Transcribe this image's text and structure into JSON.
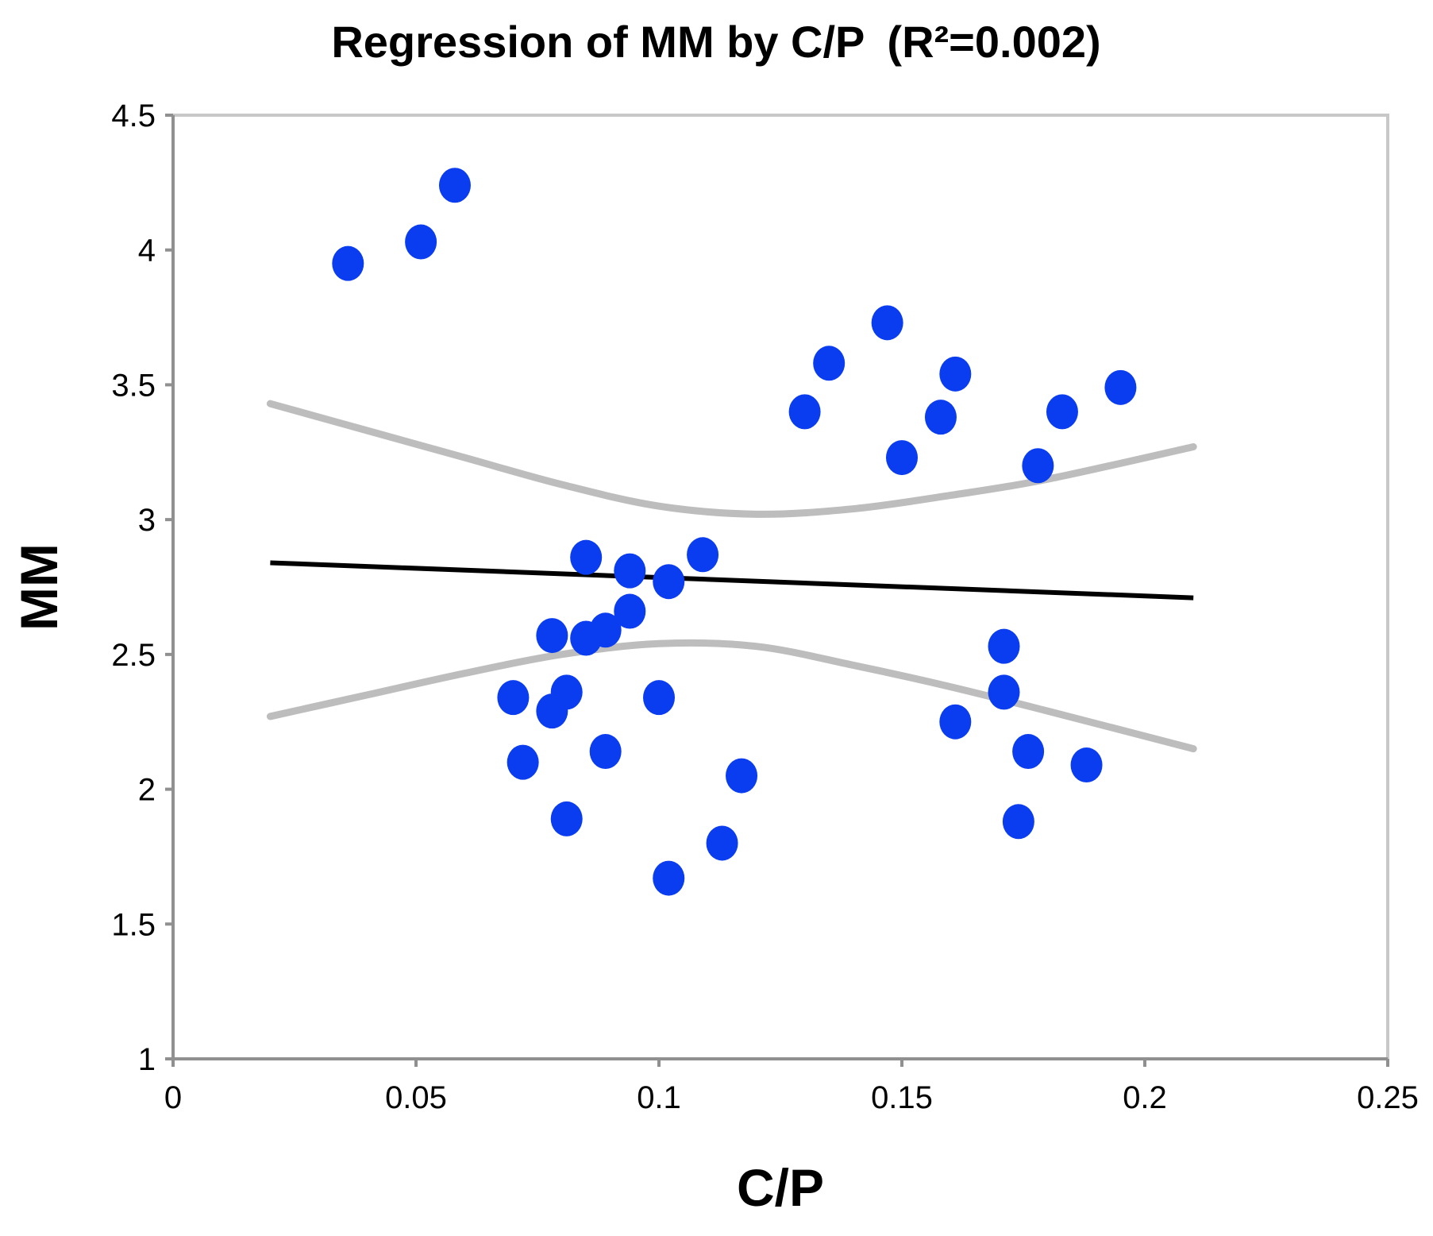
{
  "chart_data": {
    "type": "scatter",
    "title": "Regression of MM by C/P",
    "title_stat": "(R²=0.002)",
    "xlabel": "C/P",
    "ylabel": "MM",
    "xlim": [
      0,
      0.25
    ],
    "ylim": [
      1,
      4.5
    ],
    "x_ticks": [
      0,
      0.05,
      0.1,
      0.15,
      0.2,
      0.25
    ],
    "x_tick_labels": [
      "0",
      "0.05",
      "0.1",
      "0.15",
      "0.2",
      "0.25"
    ],
    "y_ticks": [
      1,
      1.5,
      2,
      2.5,
      3,
      3.5,
      4,
      4.5
    ],
    "y_tick_labels": [
      "1",
      "1.5",
      "2",
      "2.5",
      "3",
      "3.5",
      "4",
      "4.5"
    ],
    "grid": false,
    "colors": {
      "points": "#0a3cf0",
      "regression_line": "#000000",
      "confidence_band": "#bdbdbd",
      "frame": "#c8c8c8",
      "axis": "#909090"
    },
    "points": [
      {
        "x": 0.036,
        "y": 3.95
      },
      {
        "x": 0.051,
        "y": 4.03
      },
      {
        "x": 0.058,
        "y": 4.24
      },
      {
        "x": 0.07,
        "y": 2.34
      },
      {
        "x": 0.072,
        "y": 2.1
      },
      {
        "x": 0.078,
        "y": 2.57
      },
      {
        "x": 0.078,
        "y": 2.29
      },
      {
        "x": 0.081,
        "y": 2.36
      },
      {
        "x": 0.081,
        "y": 1.89
      },
      {
        "x": 0.085,
        "y": 2.86
      },
      {
        "x": 0.085,
        "y": 2.56
      },
      {
        "x": 0.089,
        "y": 2.59
      },
      {
        "x": 0.089,
        "y": 2.14
      },
      {
        "x": 0.094,
        "y": 2.81
      },
      {
        "x": 0.094,
        "y": 2.66
      },
      {
        "x": 0.1,
        "y": 2.34
      },
      {
        "x": 0.102,
        "y": 2.77
      },
      {
        "x": 0.102,
        "y": 1.67
      },
      {
        "x": 0.109,
        "y": 2.87
      },
      {
        "x": 0.113,
        "y": 1.8
      },
      {
        "x": 0.117,
        "y": 2.05
      },
      {
        "x": 0.13,
        "y": 3.4
      },
      {
        "x": 0.135,
        "y": 3.58
      },
      {
        "x": 0.147,
        "y": 3.73
      },
      {
        "x": 0.15,
        "y": 3.23
      },
      {
        "x": 0.158,
        "y": 3.38
      },
      {
        "x": 0.161,
        "y": 3.54
      },
      {
        "x": 0.161,
        "y": 2.25
      },
      {
        "x": 0.171,
        "y": 2.53
      },
      {
        "x": 0.171,
        "y": 2.36
      },
      {
        "x": 0.174,
        "y": 1.88
      },
      {
        "x": 0.176,
        "y": 2.14
      },
      {
        "x": 0.178,
        "y": 3.2
      },
      {
        "x": 0.183,
        "y": 3.4
      },
      {
        "x": 0.188,
        "y": 2.09
      },
      {
        "x": 0.195,
        "y": 3.49
      }
    ],
    "regression_line": {
      "x": [
        0.02,
        0.21
      ],
      "y": [
        2.84,
        2.71
      ]
    },
    "confidence_upper": {
      "x": [
        0.02,
        0.04,
        0.06,
        0.08,
        0.1,
        0.12,
        0.14,
        0.16,
        0.18,
        0.21
      ],
      "y": [
        3.43,
        3.33,
        3.23,
        3.13,
        3.05,
        3.02,
        3.04,
        3.09,
        3.15,
        3.27
      ]
    },
    "confidence_lower": {
      "x": [
        0.02,
        0.04,
        0.06,
        0.08,
        0.1,
        0.12,
        0.14,
        0.16,
        0.18,
        0.21
      ],
      "y": [
        2.27,
        2.35,
        2.43,
        2.5,
        2.54,
        2.53,
        2.46,
        2.38,
        2.29,
        2.15
      ]
    }
  }
}
